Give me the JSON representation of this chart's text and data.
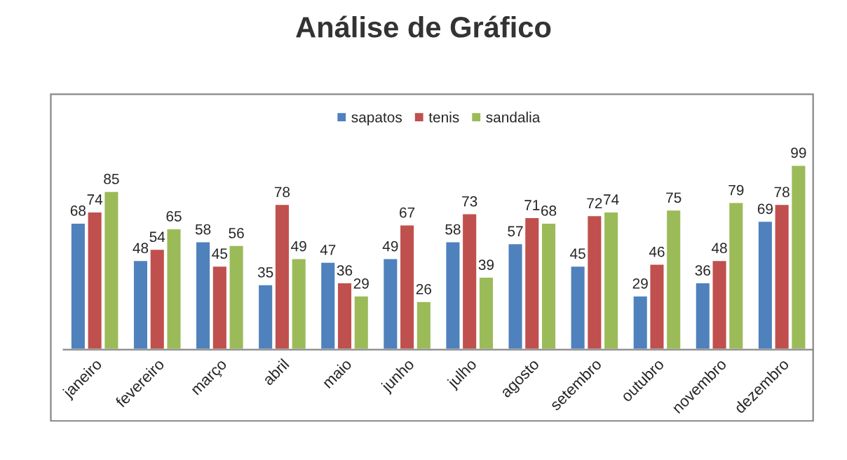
{
  "chart_data": {
    "type": "bar",
    "title": "Análise de Gráfico",
    "categories": [
      "janeiro",
      "fevereiro",
      "março",
      "abril",
      "maio",
      "junho",
      "julho",
      "agosto",
      "setembro",
      "outubro",
      "novembro",
      "dezembro"
    ],
    "series": [
      {
        "name": "sapatos",
        "color": "#4f81bd",
        "values": [
          68,
          48,
          58,
          35,
          47,
          49,
          58,
          57,
          45,
          29,
          36,
          69
        ]
      },
      {
        "name": "tenis",
        "color": "#c0504d",
        "values": [
          74,
          54,
          45,
          78,
          36,
          67,
          73,
          71,
          72,
          46,
          48,
          78
        ]
      },
      {
        "name": "sandalia",
        "color": "#9bbb59",
        "values": [
          85,
          65,
          56,
          49,
          29,
          26,
          39,
          68,
          74,
          75,
          79,
          99
        ]
      }
    ],
    "data_labels": true,
    "legend": "top",
    "grid": false
  }
}
